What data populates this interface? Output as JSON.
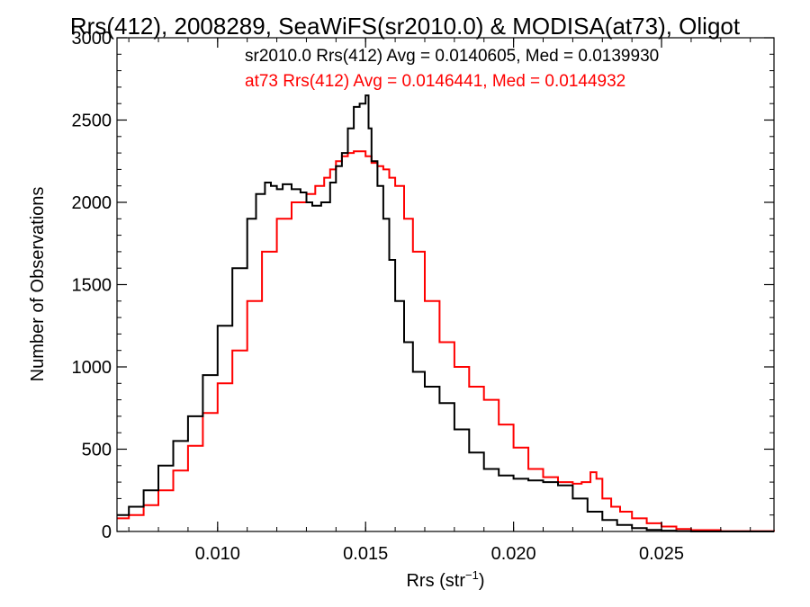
{
  "chart_data": {
    "type": "line",
    "title": "Rrs(412), 2008289, SeaWiFS(sr2010.0) & MODISA(at73), Oligot",
    "xlabel": "Rrs (str",
    "xlabel_sup": "−1",
    "xlabel_close": ")",
    "ylabel": "Number of Observations",
    "xlim": [
      0.0066,
      0.0288
    ],
    "ylim": [
      0,
      3000
    ],
    "x_ticks": [
      0.01,
      0.015,
      0.02,
      0.025
    ],
    "x_tick_labels": [
      "0.010",
      "0.015",
      "0.020",
      "0.025"
    ],
    "y_ticks": [
      0,
      500,
      1000,
      1500,
      2000,
      2500,
      3000
    ],
    "y_tick_labels": [
      "0",
      "500",
      "1000",
      "1500",
      "2000",
      "2500",
      "3000"
    ],
    "grid": false,
    "legend_position": "top-right",
    "series": [
      {
        "name": "sr2010.0 Rrs(412) Avg = 0.0140605, Med = 0.0139930",
        "color": "#000000",
        "x": [
          0.0066,
          0.007,
          0.0075,
          0.008,
          0.0085,
          0.009,
          0.0095,
          0.01,
          0.0105,
          0.011,
          0.0113,
          0.0116,
          0.0118,
          0.012,
          0.0122,
          0.0125,
          0.0128,
          0.013,
          0.0132,
          0.0135,
          0.0138,
          0.014,
          0.0142,
          0.0144,
          0.0146,
          0.0148,
          0.015,
          0.0151,
          0.0152,
          0.0154,
          0.0156,
          0.0158,
          0.016,
          0.0163,
          0.0166,
          0.017,
          0.0175,
          0.018,
          0.0185,
          0.019,
          0.0195,
          0.02,
          0.0205,
          0.021,
          0.0215,
          0.022,
          0.0225,
          0.023,
          0.0235,
          0.024,
          0.0245,
          0.025,
          0.0255,
          0.026,
          0.027,
          0.0288
        ],
        "y": [
          100,
          150,
          250,
          400,
          550,
          700,
          950,
          1250,
          1600,
          1900,
          2050,
          2120,
          2100,
          2080,
          2110,
          2080,
          2060,
          2000,
          1980,
          2000,
          2120,
          2220,
          2300,
          2450,
          2580,
          2600,
          2650,
          2450,
          2250,
          2100,
          1900,
          1650,
          1400,
          1150,
          970,
          880,
          780,
          620,
          480,
          380,
          340,
          320,
          310,
          300,
          280,
          200,
          120,
          70,
          40,
          20,
          10,
          5,
          2,
          0,
          0,
          0
        ]
      },
      {
        "name": "at73 Rrs(412) Avg = 0.0146441, Med = 0.0144932",
        "color": "#ff0000",
        "x": [
          0.0066,
          0.007,
          0.0075,
          0.008,
          0.0085,
          0.009,
          0.0095,
          0.01,
          0.0105,
          0.011,
          0.0115,
          0.012,
          0.0125,
          0.013,
          0.0133,
          0.0136,
          0.0138,
          0.014,
          0.0142,
          0.0144,
          0.0146,
          0.0148,
          0.015,
          0.0152,
          0.0154,
          0.0156,
          0.0158,
          0.016,
          0.0163,
          0.0166,
          0.017,
          0.0175,
          0.018,
          0.0185,
          0.019,
          0.0195,
          0.02,
          0.0205,
          0.021,
          0.0215,
          0.022,
          0.0223,
          0.0226,
          0.0228,
          0.023,
          0.0233,
          0.0236,
          0.024,
          0.0245,
          0.025,
          0.0255,
          0.026,
          0.027,
          0.0288
        ],
        "y": [
          80,
          100,
          160,
          250,
          370,
          520,
          720,
          900,
          1100,
          1400,
          1700,
          1900,
          2000,
          2050,
          2100,
          2150,
          2200,
          2250,
          2280,
          2300,
          2310,
          2310,
          2280,
          2240,
          2220,
          2200,
          2150,
          2100,
          1900,
          1700,
          1400,
          1150,
          1000,
          880,
          800,
          650,
          510,
          380,
          330,
          300,
          290,
          300,
          360,
          320,
          200,
          150,
          120,
          80,
          50,
          30,
          15,
          8,
          2,
          0
        ]
      }
    ]
  }
}
